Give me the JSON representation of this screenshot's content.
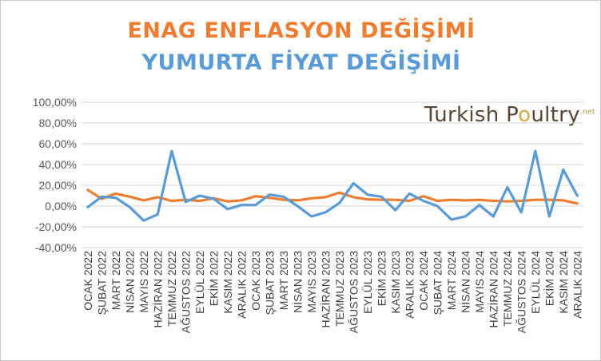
{
  "chart_data": {
    "type": "line",
    "title": "ENAG ENFLASYON DEĞİŞİMİ",
    "subtitle": "YUMURTA FİYAT DEĞİŞİMİ",
    "x": [
      "OCAK 2022",
      "ŞUBAT 2022",
      "MART 2022",
      "NİSAN 2022",
      "MAYIS 2022",
      "HAZİRAN 2022",
      "TEMMUZ 2022",
      "AĞUSTOS 2022",
      "EYLÜL 2022",
      "EKİM 2022",
      "KASIM 2022",
      "ARALIK 2022",
      "OCAK 2023",
      "ŞUBAT 2023",
      "MART 2023",
      "NİSAN 2023",
      "MAYIS 2023",
      "HAZİRAN 2023",
      "TEMMUZ 2023",
      "AĞUSTOS 2023",
      "EYLÜL 2023",
      "EKİM 2023",
      "KASIM 2023",
      "ARALIK 2023",
      "OCAK 2024",
      "ŞUBAT 2024",
      "MART 2024",
      "NİSAN 2024",
      "MAYIS 2024",
      "HAZİRAN 2024",
      "TEMMUZ 2024",
      "AĞUSTOS 2024",
      "EYLÜL 2024",
      "EKİM 2024",
      "KASIM 2024",
      "ARALIK 2024"
    ],
    "series": [
      {
        "name": "ENAG ENFLASYON DEĞİŞİMİ",
        "color": "#ed7d31",
        "values": [
          15.5,
          7.0,
          12.0,
          9.0,
          5.5,
          8.5,
          5.0,
          6.0,
          5.0,
          7.5,
          4.5,
          5.5,
          9.5,
          8.0,
          6.0,
          5.5,
          7.5,
          8.5,
          13.0,
          8.5,
          6.5,
          6.0,
          6.0,
          5.0,
          9.5,
          5.0,
          6.0,
          5.5,
          6.0,
          5.0,
          4.5,
          5.0,
          6.0,
          6.0,
          5.5,
          2.5
        ]
      },
      {
        "name": "YUMURTA FİYAT DEĞİŞİMİ",
        "color": "#5b9bd5",
        "values": [
          -1.0,
          9.0,
          8.0,
          -1.0,
          -14.0,
          -8.0,
          53.0,
          4.0,
          10.0,
          7.0,
          -3.0,
          1.0,
          1.0,
          11.0,
          9.0,
          0.0,
          -10.0,
          -6.0,
          3.0,
          22.0,
          11.0,
          9.0,
          -4.0,
          12.0,
          5.0,
          0.0,
          -13.0,
          -10.0,
          1.0,
          -10.0,
          18.0,
          -6.0,
          53.0,
          -10.0,
          35.0,
          10.0
        ]
      }
    ],
    "ylim": [
      -40,
      100
    ],
    "yticks": [
      "100,00%",
      "80,00%",
      "60,00%",
      "40,00%",
      "20,00%",
      "0,00%",
      "-20,00%",
      "-40,00%"
    ],
    "ytick_values": [
      100,
      80,
      60,
      40,
      20,
      0,
      -20,
      -40
    ],
    "grid": true,
    "legend": "none"
  },
  "logo": {
    "part1": "Turkish P",
    "part2": "o",
    "part3": "ultry",
    "suffix": ".net"
  }
}
